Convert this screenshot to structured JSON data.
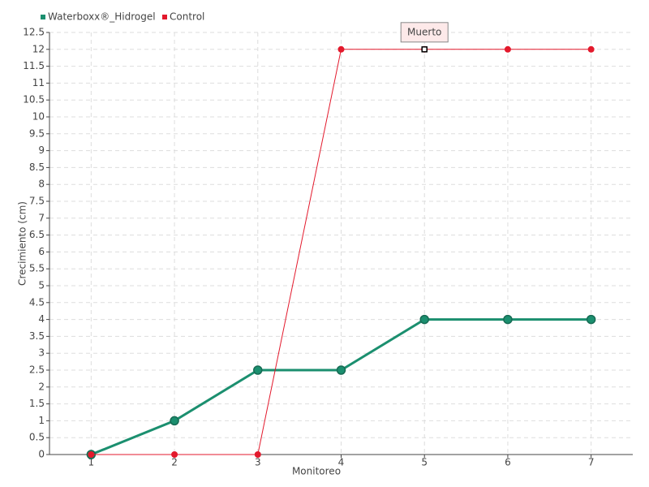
{
  "chart_data": {
    "type": "line",
    "x": [
      1,
      2,
      3,
      4,
      5,
      6,
      7
    ],
    "xlim": [
      0.5,
      7.5
    ],
    "xticks": [
      1,
      2,
      3,
      4,
      5,
      6,
      7
    ],
    "ylim": [
      0,
      12.5
    ],
    "yticks": [
      0,
      0.5,
      1,
      1.5,
      2,
      2.5,
      3,
      3.5,
      4,
      4.5,
      5,
      5.5,
      6,
      6.5,
      7,
      7.5,
      8,
      8.5,
      9,
      9.5,
      10,
      10.5,
      11,
      11.5,
      12,
      12.5
    ],
    "x_label": "Monitoreo",
    "y_label": "Crecimiento (cm)",
    "grid": true,
    "series": [
      {
        "name": "Waterboxx®_Hidrogel",
        "color": "#1b8f6f",
        "values": [
          0,
          1,
          2.5,
          2.5,
          4,
          4,
          4
        ]
      },
      {
        "name": "Control",
        "color": "#e3192c",
        "values": [
          0,
          0,
          0,
          12,
          12,
          12,
          12
        ]
      }
    ],
    "annotations": [
      {
        "text": "Muerto",
        "x": 5,
        "y": 12
      }
    ]
  }
}
